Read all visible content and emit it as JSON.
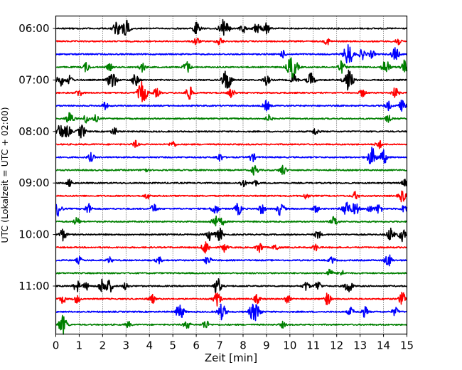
{
  "chart_data": {
    "type": "line",
    "title": "",
    "xlabel": "Zeit  [min]",
    "ylabel": "UTC (Lokalzeit = UTC + 02:00)",
    "xlim": [
      0,
      15
    ],
    "x_ticks": [
      "0",
      "1",
      "2",
      "3",
      "4",
      "5",
      "6",
      "7",
      "8",
      "9",
      "10",
      "11",
      "12",
      "13",
      "14",
      "15"
    ],
    "y_ticks": [
      "06:00",
      "07:00",
      "08:00",
      "09:00",
      "10:00",
      "11:00"
    ],
    "grid": "vertical dotted lines at each minute",
    "trace_count": 24,
    "trace_interval": "15 min",
    "color_cycle": [
      "#000000",
      "#ff0000",
      "#0000ff",
      "#008000"
    ],
    "events": [
      [
        [
          2.6,
          1.6
        ],
        [
          3.0,
          2.0
        ],
        [
          6.0,
          1.6
        ],
        [
          7.2,
          2.6
        ],
        [
          8.0,
          1.2
        ],
        [
          8.6,
          1.4
        ],
        [
          9.0,
          1.2
        ]
      ],
      [
        [
          6.0,
          1.0
        ],
        [
          7.0,
          1.0
        ],
        [
          11.6,
          0.8
        ],
        [
          14.6,
          1.0
        ]
      ],
      [
        [
          9.7,
          0.8
        ],
        [
          12.5,
          2.6
        ],
        [
          13.1,
          1.2
        ],
        [
          13.5,
          0.9
        ],
        [
          14.5,
          1.6
        ]
      ],
      [
        [
          1.3,
          1.1
        ],
        [
          2.3,
          0.8
        ],
        [
          3.7,
          1.1
        ],
        [
          5.6,
          1.4
        ],
        [
          10.1,
          3.0
        ],
        [
          12.2,
          1.4
        ],
        [
          14.1,
          1.8
        ],
        [
          14.9,
          1.6
        ]
      ],
      [
        [
          0.2,
          1.4
        ],
        [
          0.6,
          1.0
        ],
        [
          2.4,
          2.2
        ],
        [
          3.4,
          1.4
        ],
        [
          7.3,
          2.6
        ],
        [
          9.0,
          1.2
        ],
        [
          10.2,
          1.2
        ],
        [
          10.9,
          1.7
        ],
        [
          12.5,
          2.6
        ]
      ],
      [
        [
          1.0,
          0.9
        ],
        [
          3.7,
          2.6
        ],
        [
          4.3,
          1.0
        ],
        [
          5.7,
          1.6
        ],
        [
          7.5,
          1.0
        ],
        [
          13.1,
          0.9
        ],
        [
          14.5,
          1.2
        ]
      ],
      [
        [
          2.1,
          0.8
        ],
        [
          9.0,
          1.2
        ],
        [
          14.2,
          1.0
        ],
        [
          14.8,
          1.3
        ]
      ],
      [
        [
          0.6,
          1.6
        ],
        [
          1.3,
          1.0
        ],
        [
          1.7,
          0.8
        ],
        [
          9.1,
          0.8
        ],
        [
          14.2,
          0.8
        ]
      ],
      [
        [
          0.2,
          1.7
        ],
        [
          0.5,
          1.4
        ],
        [
          1.1,
          1.6
        ],
        [
          2.5,
          0.9
        ],
        [
          11.1,
          0.9
        ]
      ],
      [
        [
          3.4,
          0.8
        ],
        [
          5.0,
          0.8
        ],
        [
          13.8,
          1.0
        ]
      ],
      [
        [
          1.5,
          1.0
        ],
        [
          7.0,
          1.0
        ],
        [
          8.4,
          1.0
        ],
        [
          13.5,
          2.2
        ],
        [
          14.0,
          1.6
        ]
      ],
      [
        [
          3.8,
          0.6
        ],
        [
          8.5,
          1.2
        ],
        [
          9.7,
          1.2
        ]
      ],
      [
        [
          0.6,
          0.9
        ],
        [
          8.0,
          0.9
        ],
        [
          8.5,
          0.8
        ],
        [
          14.9,
          0.8
        ]
      ],
      [
        [
          3.9,
          0.7
        ],
        [
          10.7,
          0.7
        ],
        [
          12.8,
          0.9
        ],
        [
          14.8,
          1.4
        ]
      ],
      [
        [
          0.1,
          1.6
        ],
        [
          1.4,
          1.2
        ],
        [
          4.2,
          1.1
        ],
        [
          6.8,
          1.4
        ],
        [
          7.8,
          1.4
        ],
        [
          8.8,
          1.2
        ],
        [
          9.6,
          1.6
        ],
        [
          11.1,
          0.9
        ],
        [
          12.4,
          1.9
        ],
        [
          12.8,
          1.5
        ],
        [
          13.4,
          0.9
        ],
        [
          13.8,
          1.2
        ],
        [
          14.9,
          1.0
        ]
      ],
      [
        [
          0.9,
          0.9
        ],
        [
          6.8,
          1.4
        ],
        [
          7.1,
          0.8
        ],
        [
          11.9,
          1.2
        ]
      ],
      [
        [
          0.3,
          1.4
        ],
        [
          6.6,
          1.4
        ],
        [
          7.0,
          1.4
        ],
        [
          11.2,
          1.0
        ],
        [
          14.3,
          1.5
        ],
        [
          14.8,
          1.5
        ]
      ],
      [
        [
          6.4,
          1.6
        ],
        [
          7.2,
          1.0
        ],
        [
          8.7,
          1.2
        ],
        [
          9.4,
          0.8
        ],
        [
          11.1,
          0.8
        ]
      ],
      [
        [
          1.0,
          0.8
        ],
        [
          2.3,
          0.7
        ],
        [
          4.4,
          0.8
        ],
        [
          6.5,
          1.0
        ],
        [
          11.8,
          0.8
        ],
        [
          14.2,
          1.5
        ]
      ],
      [
        [
          11.7,
          0.9
        ],
        [
          12.2,
          0.7
        ]
      ],
      [
        [
          0.9,
          1.3
        ],
        [
          1.3,
          0.9
        ],
        [
          2.0,
          1.8
        ],
        [
          2.3,
          1.4
        ],
        [
          3.0,
          0.9
        ],
        [
          6.9,
          1.9
        ],
        [
          10.7,
          1.1
        ],
        [
          11.2,
          1.2
        ],
        [
          12.5,
          1.7
        ]
      ],
      [
        [
          0.3,
          1.0
        ],
        [
          0.9,
          1.0
        ],
        [
          4.1,
          1.1
        ],
        [
          6.9,
          1.6
        ],
        [
          8.6,
          1.0
        ],
        [
          9.9,
          0.9
        ],
        [
          11.6,
          1.4
        ],
        [
          14.8,
          1.5
        ]
      ],
      [
        [
          5.3,
          1.9
        ],
        [
          7.1,
          1.9
        ],
        [
          8.4,
          1.6
        ],
        [
          8.6,
          1.6
        ],
        [
          12.6,
          1.0
        ],
        [
          13.2,
          1.2
        ],
        [
          14.5,
          1.0
        ]
      ],
      [
        [
          0.3,
          2.2
        ],
        [
          3.1,
          0.7
        ],
        [
          5.6,
          1.0
        ],
        [
          6.4,
          1.1
        ],
        [
          9.7,
          0.7
        ]
      ]
    ]
  }
}
